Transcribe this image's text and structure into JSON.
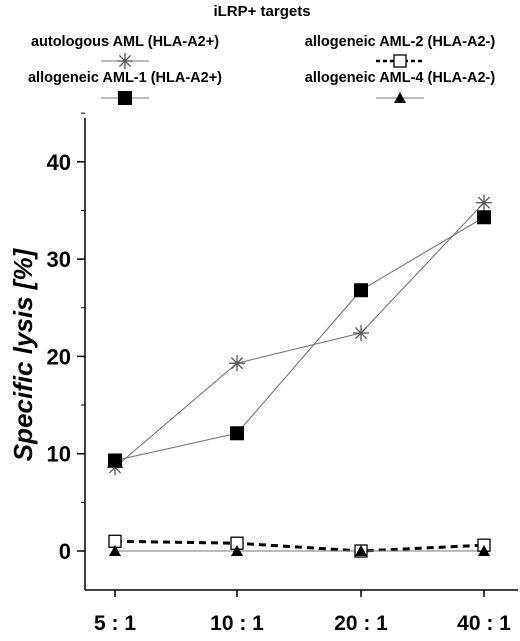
{
  "chart_data": {
    "type": "line",
    "legend_title": "iLRP+ targets",
    "ylabel": "Specific lysis [%]",
    "xlabel": "",
    "categories": [
      "5 : 1",
      "10 : 1",
      "20 : 1",
      "40 : 1"
    ],
    "ylim": [
      -3,
      45
    ],
    "yticks": [
      0,
      10,
      20,
      30,
      40
    ],
    "grid": false,
    "legend_position": "top",
    "series": [
      {
        "name": "autologous AML (HLA-A2+)",
        "values": [
          8.6,
          19.3,
          22.4,
          35.8
        ],
        "marker": "star",
        "line": "solid",
        "color": "#888888"
      },
      {
        "name": "allogeneic AML-1 (HLA-A2+)",
        "values": [
          9.3,
          12.1,
          26.8,
          34.3
        ],
        "marker": "filled-square",
        "line": "solid",
        "color": "#777777"
      },
      {
        "name": "allogeneic AML-2 (HLA-A2-)",
        "values": [
          1.0,
          0.8,
          0.0,
          0.6
        ],
        "marker": "open-square",
        "line": "dashed",
        "color": "#000000"
      },
      {
        "name": "allogeneic AML-4 (HLA-A2-)",
        "values": [
          0.0,
          0.0,
          0.0,
          0.0
        ],
        "marker": "filled-triangle",
        "line": "solid",
        "color": "#888888"
      }
    ]
  }
}
